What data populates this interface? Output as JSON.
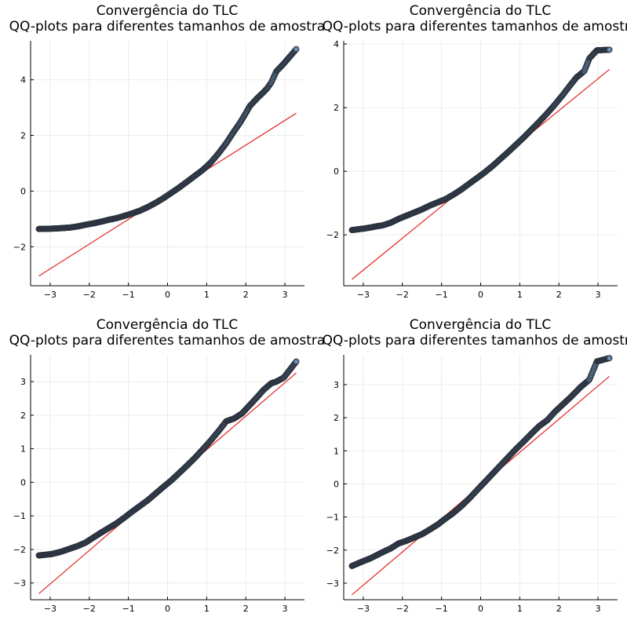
{
  "chart_data": [
    {
      "type": "scatter",
      "title": "Convergência do TLC",
      "subtitle": "QQ-plots para diferentes tamanhos de amostra",
      "xlabel": "",
      "ylabel": "",
      "xlim": [
        -3.5,
        3.5
      ],
      "ylim": [
        -3.4,
        5.4
      ],
      "xticks": [
        -3,
        -2,
        -1,
        0,
        1,
        2,
        3
      ],
      "yticks": [
        -2,
        0,
        2,
        4
      ],
      "grid": true,
      "legend": "none",
      "points": {
        "qx": [
          -3.29,
          -2.97,
          -2.82,
          -2.7,
          -2.6,
          -2.5,
          -2.3,
          -2.1,
          -1.9,
          -1.7,
          -1.5,
          -1.3,
          -1.1,
          -0.9,
          -0.7,
          -0.5,
          -0.3,
          -0.1,
          0.1,
          0.3,
          0.5,
          0.7,
          0.9,
          1.1,
          1.3,
          1.5,
          1.7,
          1.85,
          2.0,
          2.1,
          2.2,
          2.3,
          2.45,
          2.55,
          2.65,
          2.78,
          2.97,
          3.29
        ],
        "qy": [
          -1.36,
          -1.35,
          -1.34,
          -1.33,
          -1.32,
          -1.31,
          -1.27,
          -1.21,
          -1.16,
          -1.1,
          -1.03,
          -0.97,
          -0.89,
          -0.8,
          -0.7,
          -0.57,
          -0.42,
          -0.25,
          -0.06,
          0.13,
          0.34,
          0.55,
          0.76,
          1.02,
          1.35,
          1.72,
          2.15,
          2.45,
          2.8,
          3.05,
          3.2,
          3.35,
          3.55,
          3.7,
          3.9,
          4.3,
          4.58,
          5.1
        ]
      },
      "reference_line": {
        "x": [
          -3.29,
          3.29
        ],
        "y": [
          -3.05,
          2.8
        ]
      },
      "colors": {
        "points": "#6d8fb3",
        "point_edge": "#2c3440",
        "line": "#e32422"
      }
    },
    {
      "type": "scatter",
      "title": "Convergência do TLC",
      "subtitle": "QQ-plots para diferentes tamanhos de amostra",
      "xlabel": "",
      "ylabel": "",
      "xlim": [
        -3.5,
        3.5
      ],
      "ylim": [
        -3.6,
        4.1
      ],
      "xticks": [
        -3,
        -2,
        -1,
        0,
        1,
        2,
        3
      ],
      "yticks": [
        -2,
        0,
        2,
        4
      ],
      "grid": true,
      "legend": "none",
      "points": {
        "qx": [
          -3.29,
          -2.97,
          -2.82,
          -2.7,
          -2.6,
          -2.5,
          -2.3,
          -2.1,
          -1.9,
          -1.7,
          -1.5,
          -1.3,
          -1.1,
          -0.9,
          -0.7,
          -0.5,
          -0.3,
          -0.1,
          0.1,
          0.3,
          0.5,
          0.7,
          0.9,
          1.1,
          1.3,
          1.5,
          1.7,
          1.9,
          2.1,
          2.3,
          2.45,
          2.55,
          2.65,
          2.78,
          2.97,
          3.29
        ],
        "qy": [
          -1.85,
          -1.8,
          -1.77,
          -1.74,
          -1.72,
          -1.7,
          -1.62,
          -1.5,
          -1.4,
          -1.3,
          -1.2,
          -1.08,
          -0.98,
          -0.88,
          -0.74,
          -0.58,
          -0.4,
          -0.22,
          -0.04,
          0.16,
          0.38,
          0.6,
          0.83,
          1.06,
          1.31,
          1.56,
          1.82,
          2.1,
          2.4,
          2.72,
          2.95,
          3.05,
          3.15,
          3.55,
          3.8,
          3.82
        ]
      },
      "reference_line": {
        "x": [
          -3.29,
          3.29
        ],
        "y": [
          -3.4,
          3.2
        ]
      },
      "colors": {
        "points": "#6d8fb3",
        "point_edge": "#2c3440",
        "line": "#e32422"
      }
    },
    {
      "type": "scatter",
      "title": "Convergência do TLC",
      "subtitle": "QQ-plots para diferentes tamanhos de amostra",
      "xlabel": "",
      "ylabel": "",
      "xlim": [
        -3.5,
        3.5
      ],
      "ylim": [
        -3.5,
        3.8
      ],
      "xticks": [
        -3,
        -2,
        -1,
        0,
        1,
        2,
        3
      ],
      "yticks": [
        -3,
        -2,
        -1,
        0,
        1,
        2,
        3
      ],
      "grid": true,
      "legend": "none",
      "points": {
        "qx": [
          -3.29,
          -2.97,
          -2.82,
          -2.7,
          -2.6,
          -2.5,
          -2.3,
          -2.1,
          -1.9,
          -1.7,
          -1.5,
          -1.3,
          -1.1,
          -0.9,
          -0.7,
          -0.5,
          -0.3,
          -0.1,
          0.1,
          0.3,
          0.5,
          0.7,
          0.9,
          1.1,
          1.3,
          1.5,
          1.7,
          1.9,
          2.1,
          2.3,
          2.45,
          2.55,
          2.65,
          2.78,
          2.97,
          3.29
        ],
        "qy": [
          -2.18,
          -2.14,
          -2.1,
          -2.06,
          -2.02,
          -1.98,
          -1.9,
          -1.8,
          -1.65,
          -1.5,
          -1.36,
          -1.22,
          -1.05,
          -0.87,
          -0.7,
          -0.53,
          -0.33,
          -0.13,
          0.06,
          0.28,
          0.5,
          0.73,
          0.98,
          1.24,
          1.52,
          1.82,
          1.9,
          2.05,
          2.3,
          2.55,
          2.75,
          2.85,
          2.95,
          3.0,
          3.12,
          3.6
        ]
      },
      "reference_line": {
        "x": [
          -3.29,
          3.29
        ],
        "y": [
          -3.32,
          3.26
        ]
      },
      "colors": {
        "points": "#6d8fb3",
        "point_edge": "#2c3440",
        "line": "#e32422"
      }
    },
    {
      "type": "scatter",
      "title": "Convergência do TLC",
      "subtitle": "QQ-plots para diferentes tamanhos de amostra",
      "xlabel": "",
      "ylabel": "",
      "xlim": [
        -3.5,
        3.5
      ],
      "ylim": [
        -3.5,
        3.9
      ],
      "xticks": [
        -3,
        -2,
        -1,
        0,
        1,
        2,
        3
      ],
      "yticks": [
        -3,
        -2,
        -1,
        0,
        1,
        2,
        3
      ],
      "grid": true,
      "legend": "none",
      "points": {
        "qx": [
          -3.29,
          -2.97,
          -2.82,
          -2.7,
          -2.6,
          -2.5,
          -2.3,
          -2.1,
          -1.9,
          -1.7,
          -1.5,
          -1.3,
          -1.1,
          -0.9,
          -0.7,
          -0.5,
          -0.3,
          -0.1,
          0.1,
          0.3,
          0.5,
          0.7,
          0.9,
          1.1,
          1.3,
          1.5,
          1.7,
          1.9,
          2.1,
          2.3,
          2.45,
          2.55,
          2.65,
          2.78,
          2.97,
          3.29
        ],
        "qy": [
          -2.48,
          -2.32,
          -2.25,
          -2.18,
          -2.12,
          -2.06,
          -1.95,
          -1.8,
          -1.72,
          -1.62,
          -1.52,
          -1.38,
          -1.23,
          -1.05,
          -0.88,
          -0.68,
          -0.45,
          -0.2,
          0.05,
          0.3,
          0.55,
          0.8,
          1.05,
          1.28,
          1.52,
          1.75,
          1.92,
          2.18,
          2.4,
          2.62,
          2.8,
          2.92,
          3.02,
          3.15,
          3.7,
          3.8
        ]
      },
      "reference_line": {
        "x": [
          -3.29,
          3.29
        ],
        "y": [
          -3.35,
          3.25
        ]
      },
      "colors": {
        "points": "#6d8fb3",
        "point_edge": "#2c3440",
        "line": "#e32422"
      }
    }
  ]
}
